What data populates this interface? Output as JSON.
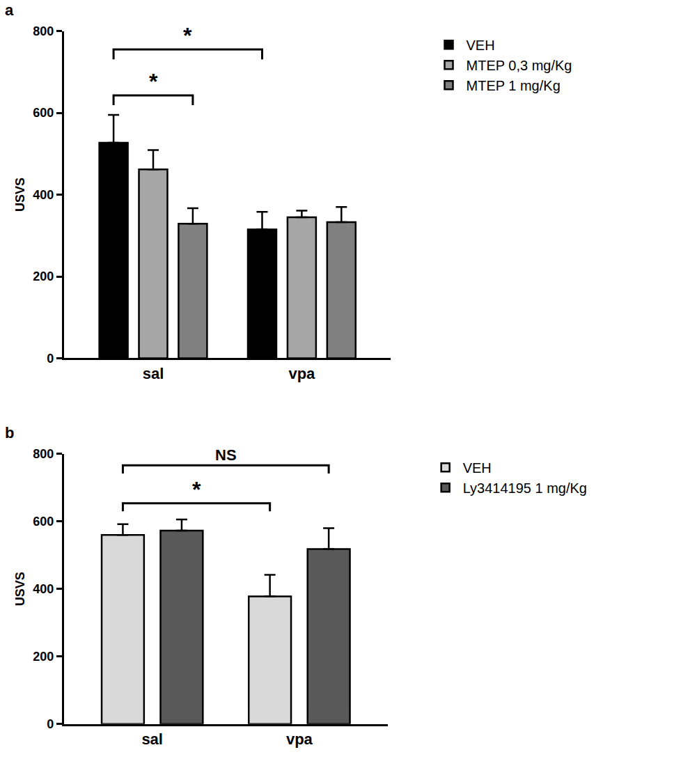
{
  "chart_data": [
    {
      "type": "bar",
      "title": "a",
      "categories": [
        "sal",
        "vpa"
      ],
      "y_label": "USVS",
      "series": [
        {
          "name": "VEH",
          "color": "#000000",
          "values": [
            527,
            315
          ],
          "errors": [
            68,
            43
          ]
        },
        {
          "name": "MTEP 0,3 mg/Kg",
          "color": "#a6a6a6",
          "values": [
            462,
            345
          ],
          "errors": [
            47,
            16
          ]
        },
        {
          "name": "MTEP 1 mg/Kg",
          "color": "#808080",
          "values": [
            329,
            333
          ],
          "errors": [
            38,
            37
          ]
        }
      ],
      "ylim": [
        0,
        800
      ],
      "yticks": [
        0,
        200,
        400,
        600,
        800
      ],
      "grid": false,
      "legend": "right",
      "annotations": [
        {
          "text": "*",
          "from": {
            "category": "sal",
            "series": "VEH"
          },
          "to": {
            "category": "sal",
            "series": "MTEP 1 mg/Kg"
          }
        },
        {
          "text": "*",
          "from": {
            "category": "sal",
            "series": "VEH"
          },
          "to": {
            "category": "vpa",
            "series": "VEH"
          }
        }
      ]
    },
    {
      "type": "bar",
      "title": "b",
      "categories": [
        "sal",
        "vpa"
      ],
      "y_label": "USVS",
      "series": [
        {
          "name": "VEH",
          "color": "#d9d9d9",
          "values": [
            560,
            378
          ],
          "errors": [
            32,
            64
          ]
        },
        {
          "name": "Ly3414195 1 mg/Kg",
          "color": "#595959",
          "values": [
            573,
            518
          ],
          "errors": [
            33,
            62
          ]
        }
      ],
      "ylim": [
        0,
        800
      ],
      "yticks": [
        0,
        200,
        400,
        600,
        800
      ],
      "grid": false,
      "legend": "right",
      "annotations": [
        {
          "text": "*",
          "from": {
            "category": "sal",
            "series": "VEH"
          },
          "to": {
            "category": "vpa",
            "series": "VEH"
          }
        },
        {
          "text": "NS",
          "from": {
            "category": "sal",
            "series": "VEH"
          },
          "to": {
            "category": "vpa",
            "series": "Ly3414195 1 mg/Kg"
          }
        }
      ]
    }
  ]
}
